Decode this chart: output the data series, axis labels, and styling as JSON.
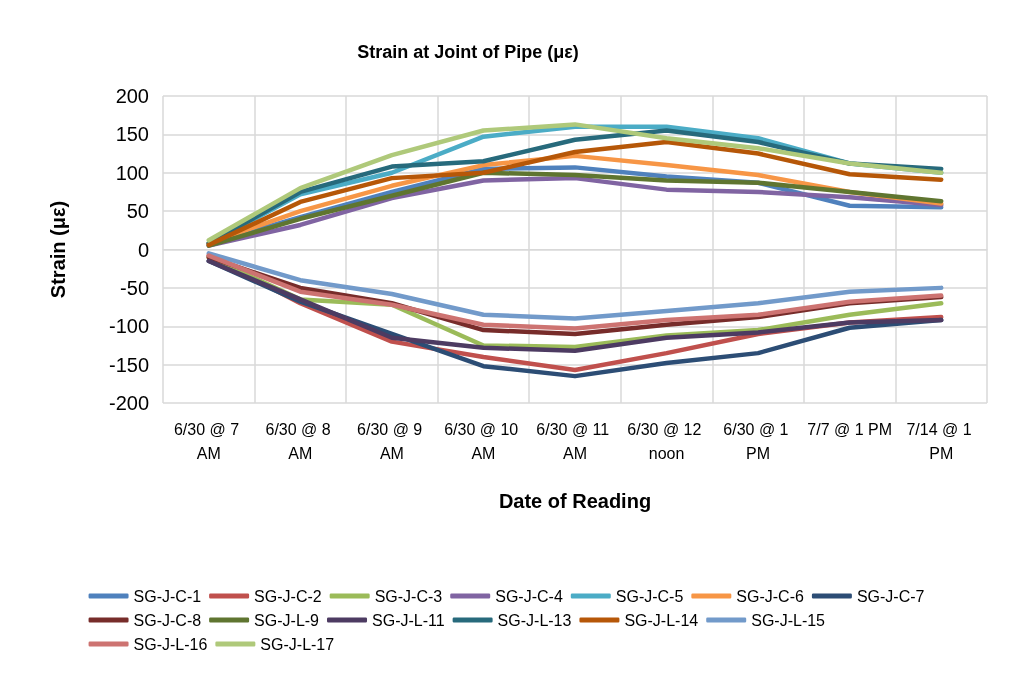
{
  "chart_data": {
    "type": "line",
    "title": "Strain at Joint of Pipe (με)",
    "xlabel": "Date of Reading",
    "ylabel": "Strain (με)",
    "categories": [
      "6/30 @ 7 AM",
      "6/30 @ 8 AM",
      "6/30 @ 9 AM",
      "6/30 @ 10 AM",
      "6/30 @ 11 AM",
      "6/30 @ 12 noon",
      "6/30 @ 1 PM",
      "7/7 @ 1 PM",
      "7/14 @ 1 PM"
    ],
    "ylim": [
      -200,
      200
    ],
    "yticks": [
      -200,
      -150,
      -100,
      -50,
      0,
      50,
      100,
      150,
      200
    ],
    "grid": true,
    "legend": "bottom",
    "marker": "none",
    "line_style": "solid",
    "series": [
      {
        "name": "SG-J-C-1",
        "color": "#4f81bd",
        "values": [
          8,
          42,
          75,
          105,
          107,
          95,
          87,
          57,
          55
        ]
      },
      {
        "name": "SG-J-C-2",
        "color": "#c0504d",
        "values": [
          -8,
          -70,
          -120,
          -140,
          -157,
          -135,
          -110,
          -95,
          -88
        ]
      },
      {
        "name": "SG-J-C-3",
        "color": "#9bbb59",
        "values": [
          -10,
          -65,
          -72,
          -125,
          -127,
          -112,
          -105,
          -85,
          -70
        ]
      },
      {
        "name": "SG-J-C-4",
        "color": "#8064a2",
        "values": [
          5,
          32,
          67,
          90,
          93,
          78,
          75,
          68,
          58
        ]
      },
      {
        "name": "SG-J-C-5",
        "color": "#4bacc6",
        "values": [
          8,
          72,
          100,
          147,
          160,
          160,
          145,
          112,
          100
        ]
      },
      {
        "name": "SG-J-C-6",
        "color": "#f79646",
        "values": [
          8,
          50,
          83,
          110,
          122,
          110,
          97,
          75,
          60
        ]
      },
      {
        "name": "SG-J-C-7",
        "color": "#2c4d75",
        "values": [
          -15,
          -68,
          -110,
          -152,
          -165,
          -148,
          -135,
          -102,
          -92
        ]
      },
      {
        "name": "SG-J-C-8",
        "color": "#772c2a",
        "values": [
          -10,
          -50,
          -70,
          -105,
          -110,
          -98,
          -88,
          -70,
          -62
        ]
      },
      {
        "name": "SG-J-L-9",
        "color": "#5f7530",
        "values": [
          5,
          40,
          70,
          100,
          97,
          90,
          87,
          75,
          63
        ]
      },
      {
        "name": "SG-J-L-11",
        "color": "#4d3b62",
        "values": [
          -15,
          -65,
          -115,
          -128,
          -132,
          -115,
          -108,
          -95,
          -92
        ]
      },
      {
        "name": "SG-J-L-13",
        "color": "#276a7c",
        "values": [
          8,
          75,
          108,
          115,
          143,
          155,
          140,
          112,
          105
        ]
      },
      {
        "name": "SG-J-L-14",
        "color": "#b65708",
        "values": [
          6,
          62,
          93,
          100,
          127,
          140,
          125,
          98,
          91
        ]
      },
      {
        "name": "SG-J-L-15",
        "color": "#729aca",
        "values": [
          -5,
          -40,
          -58,
          -85,
          -90,
          -80,
          -70,
          -55,
          -50
        ]
      },
      {
        "name": "SG-J-L-16",
        "color": "#cd7371",
        "values": [
          -8,
          -55,
          -72,
          -98,
          -103,
          -92,
          -85,
          -68,
          -60
        ]
      },
      {
        "name": "SG-J-L-17",
        "color": "#afc97a",
        "values": [
          12,
          80,
          123,
          155,
          163,
          145,
          132,
          112,
          100
        ]
      }
    ]
  }
}
